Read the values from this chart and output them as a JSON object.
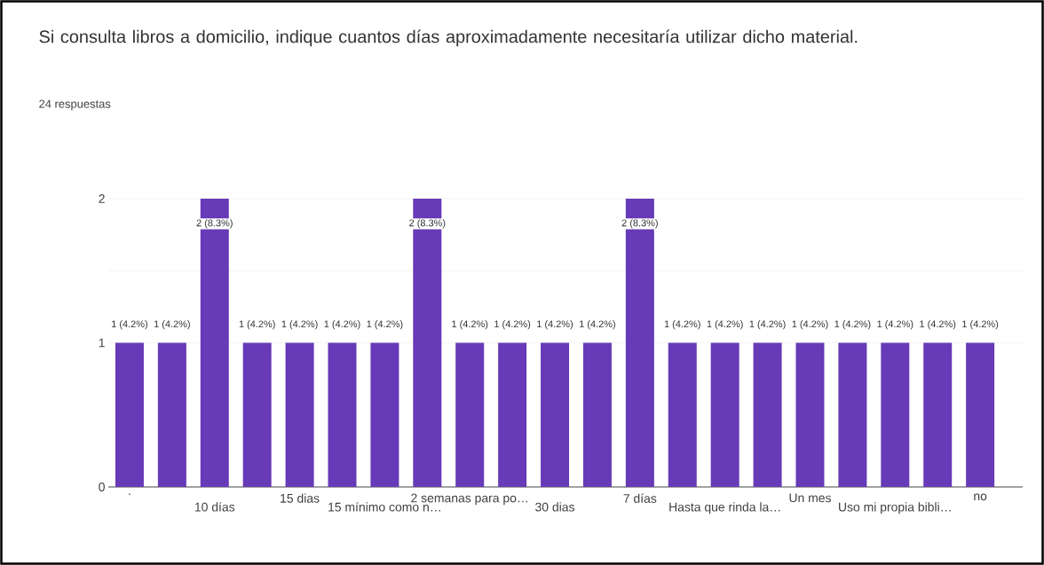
{
  "chart_data": {
    "type": "bar",
    "title": "Si consulta libros a domicilio, indique cuantos días aproximadamente necesitaría utilizar dicho material.",
    "subtitle": "24 respuestas",
    "categories": [
      ".",
      null,
      "10 días",
      null,
      "15 dias",
      null,
      "15 mínimo como n…",
      null,
      "2 semanas para po…",
      null,
      "30 dias",
      null,
      "7 días",
      null,
      "Hasta que rinda la…",
      null,
      "Un mes",
      null,
      "Uso mi propia bibli…",
      null,
      "no"
    ],
    "values": [
      1,
      1,
      2,
      1,
      1,
      1,
      1,
      2,
      1,
      1,
      1,
      1,
      2,
      1,
      1,
      1,
      1,
      1,
      1,
      1,
      1
    ],
    "value_labels": [
      "1 (4.2%)",
      "1 (4.2%)",
      "2 (8.3%)",
      "1 (4.2%)",
      "1 (4.2%)",
      "1 (4.2%)",
      "1 (4.2%)",
      "2 (8.3%)",
      "1 (4.2%)",
      "1 (4.2%)",
      "1 (4.2%)",
      "1 (4.2%)",
      "2 (8.3%)",
      "1 (4.2%)",
      "1 (4.2%)",
      "1 (4.2%)",
      "1 (4.2%)",
      "1 (4.2%)",
      "1 (4.2%)",
      "1 (4.2%)",
      "1 (4.2%)"
    ],
    "color": "#673ab7",
    "ylim": [
      0,
      2
    ],
    "yticks": [
      0,
      {
        "value": 1.5,
        "label": null
      },
      1,
      2
    ],
    "grid": "y"
  }
}
